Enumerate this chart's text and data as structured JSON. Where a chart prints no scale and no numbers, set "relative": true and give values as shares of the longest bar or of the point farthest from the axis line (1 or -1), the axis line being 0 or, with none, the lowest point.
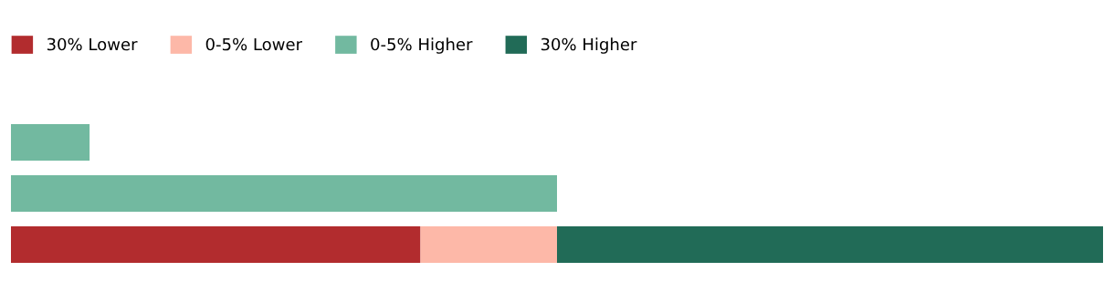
{
  "chart_data": {
    "type": "bar",
    "orientation": "horizontal",
    "stacked": true,
    "relative": true,
    "categories": [
      null,
      null,
      null
    ],
    "series": [
      {
        "name": "30% Lower",
        "color": "#b22c2e",
        "values": [
          null,
          null,
          0.375
        ]
      },
      {
        "name": "0-5% Lower",
        "color": "#fdb8a8",
        "values": [
          null,
          null,
          0.125
        ]
      },
      {
        "name": "0-5% Higher",
        "color": "#72b9a0",
        "values": [
          0.072,
          0.5,
          null
        ]
      },
      {
        "name": "30% Higher",
        "color": "#216b57",
        "values": [
          null,
          null,
          0.5
        ]
      }
    ],
    "legend": "top left",
    "grid": false
  }
}
